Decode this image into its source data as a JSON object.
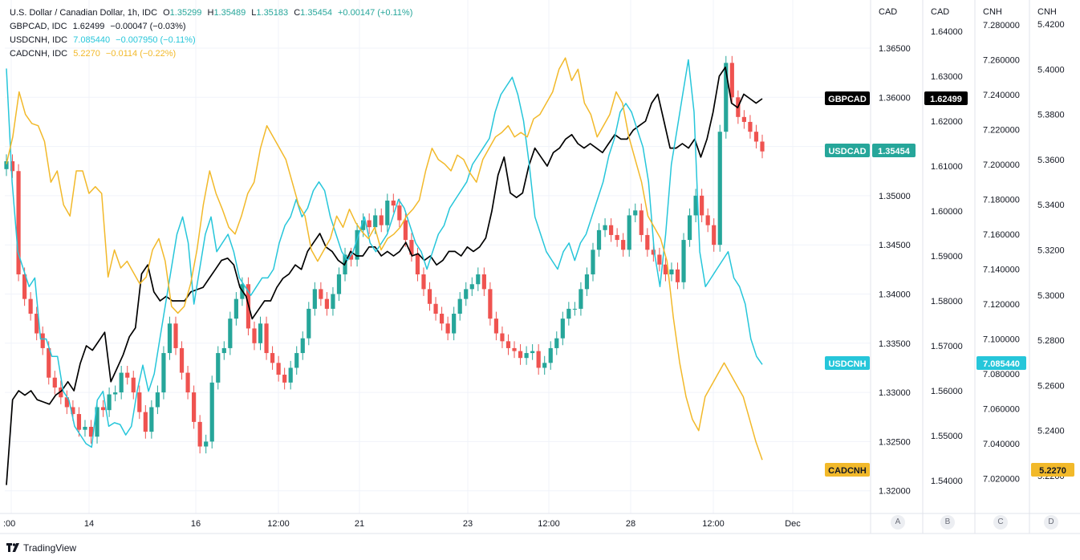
{
  "legend": [
    {
      "label": "U.S. Dollar / Canadian Dollar, 1h, IDC",
      "o_label": "O",
      "o": "1.35299",
      "h_label": "H",
      "h": "1.35489",
      "l_label": "L",
      "l": "1.35183",
      "c_label": "C",
      "c": "1.35454",
      "change": "+0.00147 (+0.11%)",
      "color": "#26a69a"
    },
    {
      "label": "GBPCAD, IDC",
      "value": "1.62499",
      "change": "−0.00047 (−0.03%)",
      "color": "#131722"
    },
    {
      "label": "USDCNH, IDC",
      "value": "7.085440",
      "change": "−0.007950 (−0.11%)",
      "color": "#26c6da"
    },
    {
      "label": "CADCNH, IDC",
      "value": "5.2270",
      "change": "−0.0114 (−0.22%)",
      "color": "#f2b92a"
    }
  ],
  "scale_buttons": [
    "A",
    "B",
    "C",
    "D"
  ],
  "brand": "TradingView",
  "chart_data": {
    "type": "line",
    "x": {
      "tick_labels": [
        ":00",
        "14",
        "16",
        "12:00",
        "21",
        "23",
        "12:00",
        "28",
        "12:00",
        "Dec"
      ]
    },
    "axes": [
      {
        "id": "A",
        "title": "CAD",
        "ticks": [
          "1.36500",
          "1.36000",
          "1.35500",
          "1.35000",
          "1.34500",
          "1.34000",
          "1.33500",
          "1.33000",
          "1.32500",
          "1.32000"
        ],
        "range": [
          1.318,
          1.3685
        ]
      },
      {
        "id": "B",
        "title": "CAD",
        "ticks": [
          "1.64000",
          "1.63000",
          "1.62000",
          "1.61000",
          "1.60000",
          "1.59000",
          "1.58000",
          "1.57000",
          "1.56000",
          "1.55000",
          "1.54000"
        ]
      },
      {
        "id": "C",
        "title": "CNH",
        "ticks": [
          "7.280000",
          "7.260000",
          "7.240000",
          "7.220000",
          "7.200000",
          "7.180000",
          "7.160000",
          "7.140000",
          "7.120000",
          "7.100000",
          "7.080000",
          "7.060000",
          "7.040000",
          "7.020000"
        ]
      },
      {
        "id": "D",
        "title": "CNH",
        "ticks": [
          "5.4200",
          "5.4000",
          "5.3800",
          "5.3600",
          "5.3400",
          "5.3200",
          "5.3000",
          "5.2800",
          "5.2600",
          "5.2400",
          "5.2200"
        ]
      }
    ],
    "tags": [
      {
        "symbol": "GBPCAD",
        "value": "1.62499",
        "color": "#000000"
      },
      {
        "symbol": "USDCAD",
        "value": "1.35454",
        "color": "#26a69a"
      },
      {
        "symbol": "USDCNH",
        "value": "7.085440",
        "color": "#26c6da"
      },
      {
        "symbol": "CADCNH",
        "value": "5.2270",
        "color": "#f2b92a"
      }
    ],
    "series": [
      {
        "name": "USDCAD",
        "kind": "candles",
        "axis": "A",
        "up_color": "#26a69a",
        "down_color": "#ef5350",
        "closes": [
          1.3535,
          1.3525,
          1.342,
          1.3395,
          1.338,
          1.336,
          1.3345,
          1.3315,
          1.3305,
          1.3295,
          1.3285,
          1.3278,
          1.3262,
          1.3265,
          1.3255,
          1.3285,
          1.3282,
          1.3298,
          1.33,
          1.332,
          1.3315,
          1.33,
          1.328,
          1.326,
          1.3285,
          1.33,
          1.334,
          1.337,
          1.3345,
          1.332,
          1.33,
          1.327,
          1.3245,
          1.325,
          1.331,
          1.334,
          1.3345,
          1.3375,
          1.3395,
          1.341,
          1.3365,
          1.335,
          1.337,
          1.334,
          1.333,
          1.3318,
          1.331,
          1.3325,
          1.334,
          1.3355,
          1.3385,
          1.3405,
          1.3395,
          1.3385,
          1.34,
          1.342,
          1.344,
          1.3435,
          1.3465,
          1.3475,
          1.3468,
          1.348,
          1.347,
          1.3495,
          1.349,
          1.3475,
          1.3455,
          1.344,
          1.342,
          1.3405,
          1.339,
          1.338,
          1.337,
          1.336,
          1.338,
          1.3395,
          1.3405,
          1.341,
          1.342,
          1.3405,
          1.3375,
          1.336,
          1.3352,
          1.3345,
          1.3342,
          1.3335,
          1.334,
          1.3342,
          1.3325,
          1.333,
          1.3345,
          1.3355,
          1.3375,
          1.3385,
          1.3385,
          1.3405,
          1.342,
          1.3445,
          1.3465,
          1.347,
          1.346,
          1.3455,
          1.3445,
          1.348,
          1.3485,
          1.346,
          1.3445,
          1.344,
          1.343,
          1.342,
          1.3425,
          1.3412,
          1.3455,
          1.348,
          1.35,
          1.348,
          1.347,
          1.345,
          1.3565,
          1.3635,
          1.36,
          1.358,
          1.3575,
          1.3565,
          1.3555,
          1.3545
        ]
      },
      {
        "name": "GBPCAD",
        "kind": "line",
        "axis": "B",
        "color": "#000000",
        "width": 1.7,
        "values": [
          1.539,
          1.558,
          1.56,
          1.559,
          1.56,
          1.558,
          1.5575,
          1.557,
          1.559,
          1.56,
          1.562,
          1.56,
          1.566,
          1.57,
          1.569,
          1.571,
          1.573,
          1.562,
          1.565,
          1.568,
          1.572,
          1.574,
          1.586,
          1.588,
          1.582,
          1.58,
          1.581,
          1.58,
          1.58,
          1.58,
          1.582,
          1.5825,
          1.583,
          1.585,
          1.587,
          1.589,
          1.5895,
          1.588,
          1.583,
          1.581,
          1.576,
          1.578,
          1.58,
          1.58,
          1.583,
          1.585,
          1.586,
          1.588,
          1.587,
          1.591,
          1.593,
          1.595,
          1.592,
          1.591,
          1.589,
          1.588,
          1.591,
          1.59,
          1.59,
          1.592,
          1.592,
          1.59,
          1.591,
          1.59,
          1.591,
          1.593,
          1.59,
          1.5905,
          1.589,
          1.59,
          1.588,
          1.589,
          1.591,
          1.591,
          1.59,
          1.592,
          1.591,
          1.592,
          1.594,
          1.6,
          1.608,
          1.612,
          1.604,
          1.603,
          1.604,
          1.61,
          1.614,
          1.612,
          1.61,
          1.613,
          1.614,
          1.616,
          1.617,
          1.615,
          1.614,
          1.615,
          1.614,
          1.613,
          1.615,
          1.617,
          1.616,
          1.616,
          1.618,
          1.619,
          1.62,
          1.624,
          1.626,
          1.62,
          1.614,
          1.614,
          1.615,
          1.614,
          1.616,
          1.612,
          1.616,
          1.622,
          1.63,
          1.632,
          1.624,
          1.623,
          1.626,
          1.625,
          1.624,
          1.625
        ]
      },
      {
        "name": "USDCNH",
        "kind": "line",
        "axis": "C",
        "color": "#26c6da",
        "width": 1.5,
        "values": [
          7.255,
          7.19,
          7.15,
          7.14,
          7.13,
          7.135,
          7.1,
          7.1,
          7.09,
          7.09,
          7.07,
          7.065,
          7.05,
          7.045,
          7.04,
          7.038,
          7.065,
          7.07,
          7.05,
          7.052,
          7.051,
          7.045,
          7.05,
          7.07,
          7.085,
          7.07,
          7.08,
          7.1,
          7.12,
          7.14,
          7.16,
          7.17,
          7.155,
          7.12,
          7.14,
          7.16,
          7.17,
          7.15,
          7.155,
          7.16,
          7.15,
          7.135,
          7.13,
          7.125,
          7.13,
          7.135,
          7.135,
          7.14,
          7.155,
          7.165,
          7.17,
          7.18,
          7.17,
          7.175,
          7.185,
          7.19,
          7.185,
          7.17,
          7.16,
          7.15,
          7.145,
          7.15,
          7.16,
          7.17,
          7.155,
          7.15,
          7.155,
          7.16,
          7.17,
          7.18,
          7.175,
          7.165,
          7.155,
          7.15,
          7.14,
          7.15,
          7.16,
          7.165,
          7.175,
          7.18,
          7.185,
          7.19,
          7.2,
          7.205,
          7.21,
          7.215,
          7.23,
          7.24,
          7.245,
          7.25,
          7.24,
          7.225,
          7.2,
          7.17,
          7.16,
          7.15,
          7.145,
          7.14,
          7.15,
          7.155,
          7.145,
          7.155,
          7.16,
          7.17,
          7.18,
          7.19,
          7.205,
          7.215,
          7.23,
          7.235,
          7.23,
          7.22,
          7.21,
          7.19,
          7.15,
          7.13,
          7.16,
          7.2,
          7.22,
          7.24,
          7.26,
          7.23,
          7.15,
          7.13,
          7.135,
          7.14,
          7.145,
          7.15,
          7.135,
          7.13,
          7.12,
          7.1,
          7.09,
          7.0854
        ]
      },
      {
        "name": "CADCNH",
        "kind": "line",
        "axis": "D",
        "color": "#f2b92a",
        "width": 1.5,
        "values": [
          5.358,
          5.37,
          5.39,
          5.38,
          5.376,
          5.375,
          5.368,
          5.35,
          5.355,
          5.34,
          5.335,
          5.355,
          5.355,
          5.345,
          5.348,
          5.345,
          5.308,
          5.32,
          5.312,
          5.315,
          5.31,
          5.305,
          5.308,
          5.32,
          5.325,
          5.315,
          5.295,
          5.292,
          5.295,
          5.305,
          5.32,
          5.34,
          5.355,
          5.345,
          5.338,
          5.33,
          5.327,
          5.335,
          5.345,
          5.35,
          5.365,
          5.375,
          5.37,
          5.365,
          5.36,
          5.35,
          5.34,
          5.335,
          5.32,
          5.315,
          5.32,
          5.325,
          5.335,
          5.33,
          5.338,
          5.332,
          5.328,
          5.325,
          5.33,
          5.32,
          5.325,
          5.327,
          5.33,
          5.335,
          5.338,
          5.342,
          5.355,
          5.365,
          5.36,
          5.358,
          5.355,
          5.362,
          5.36,
          5.354,
          5.35,
          5.36,
          5.365,
          5.37,
          5.372,
          5.375,
          5.37,
          5.372,
          5.37,
          5.378,
          5.38,
          5.385,
          5.39,
          5.4,
          5.405,
          5.395,
          5.4,
          5.385,
          5.38,
          5.37,
          5.375,
          5.38,
          5.39,
          5.385,
          5.37,
          5.36,
          5.35,
          5.335,
          5.33,
          5.325,
          5.315,
          5.29,
          5.27,
          5.255,
          5.245,
          5.24,
          5.255,
          5.26,
          5.265,
          5.27,
          5.265,
          5.26,
          5.255,
          5.245,
          5.235,
          5.227
        ]
      }
    ]
  }
}
